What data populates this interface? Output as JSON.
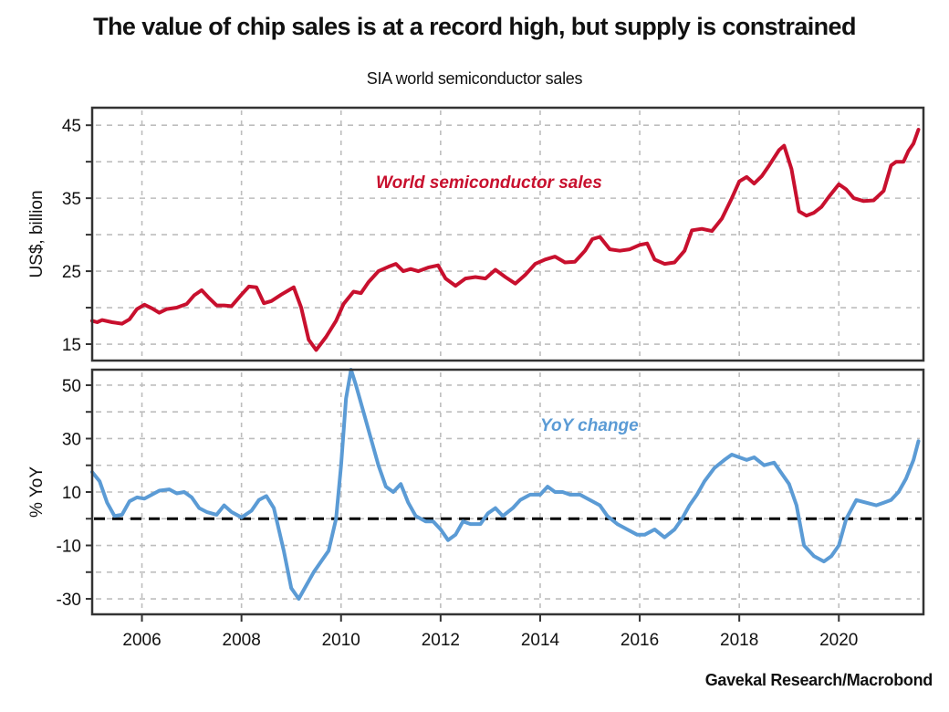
{
  "chart_data": [
    {
      "type": "line",
      "title": "The value of chip sales is at a record high, but supply is constrained",
      "subtitle": "SIA world semiconductor sales",
      "xlabel": "",
      "ylabel": "US$, billion",
      "xlim": [
        2005.0,
        2021.7
      ],
      "ylim": [
        12.75,
        47.4
      ],
      "yticks": [
        15,
        25,
        35,
        45
      ],
      "yminor": [
        20,
        30,
        40
      ],
      "xticks": [
        2006,
        2008,
        2010,
        2012,
        2014,
        2016,
        2018,
        2020
      ],
      "grid": true,
      "color": "#c8102e",
      "series": [
        {
          "name": "World semiconductor sales",
          "x": [
            2005.0,
            2005.1,
            2005.2,
            2005.4,
            2005.6,
            2005.75,
            2005.9,
            2006.05,
            2006.2,
            2006.35,
            2006.5,
            2006.7,
            2006.9,
            2007.05,
            2007.2,
            2007.35,
            2007.5,
            2007.65,
            2007.8,
            2008.0,
            2008.15,
            2008.3,
            2008.45,
            2008.6,
            2008.8,
            2008.95,
            2009.05,
            2009.2,
            2009.35,
            2009.5,
            2009.7,
            2009.9,
            2010.05,
            2010.25,
            2010.4,
            2010.55,
            2010.75,
            2010.95,
            2011.1,
            2011.25,
            2011.4,
            2011.55,
            2011.75,
            2011.95,
            2012.1,
            2012.3,
            2012.5,
            2012.7,
            2012.9,
            2013.1,
            2013.3,
            2013.5,
            2013.7,
            2013.9,
            2014.1,
            2014.3,
            2014.5,
            2014.7,
            2014.9,
            2015.05,
            2015.2,
            2015.4,
            2015.6,
            2015.8,
            2016.0,
            2016.15,
            2016.3,
            2016.5,
            2016.7,
            2016.9,
            2017.05,
            2017.25,
            2017.45,
            2017.65,
            2017.85,
            2018.0,
            2018.15,
            2018.3,
            2018.45,
            2018.6,
            2018.8,
            2018.9,
            2019.05,
            2019.2,
            2019.35,
            2019.5,
            2019.65,
            2019.8,
            2020.0,
            2020.15,
            2020.3,
            2020.5,
            2020.7,
            2020.9,
            2021.05,
            2021.15,
            2021.3,
            2021.4,
            2021.5,
            2021.6
          ],
          "values": [
            18.2,
            18.0,
            18.3,
            18.0,
            17.8,
            18.4,
            19.8,
            20.4,
            19.9,
            19.3,
            19.8,
            20.0,
            20.5,
            21.7,
            22.4,
            21.3,
            20.3,
            20.3,
            20.2,
            21.8,
            22.9,
            22.8,
            20.6,
            20.9,
            21.8,
            22.4,
            22.8,
            20.0,
            15.6,
            14.2,
            16.0,
            18.2,
            20.5,
            22.2,
            22.0,
            23.5,
            25.0,
            25.6,
            26.0,
            25.0,
            25.3,
            25.0,
            25.5,
            25.8,
            24.0,
            23.0,
            24.0,
            24.2,
            24.0,
            25.2,
            24.2,
            23.3,
            24.5,
            26.0,
            26.6,
            27.0,
            26.2,
            26.3,
            27.8,
            29.4,
            29.7,
            28.0,
            27.8,
            28.0,
            28.6,
            28.8,
            26.6,
            26.0,
            26.2,
            27.8,
            30.6,
            30.8,
            30.5,
            32.2,
            35.0,
            37.3,
            37.9,
            37.0,
            38.0,
            39.5,
            41.6,
            42.2,
            39.0,
            33.2,
            32.6,
            33.0,
            33.8,
            35.2,
            36.9,
            36.2,
            35.0,
            34.6,
            34.7,
            36.0,
            39.5,
            40.0,
            40.0,
            41.5,
            42.5,
            44.4
          ]
        }
      ],
      "annotations": [
        "World semiconductor sales"
      ]
    },
    {
      "type": "line",
      "xlabel": "",
      "ylabel": "% YoY",
      "xlim": [
        2005.0,
        2021.7
      ],
      "ylim": [
        -35.8,
        55.8
      ],
      "yticks": [
        50,
        30,
        10,
        -10,
        -30
      ],
      "yminor": [
        40,
        20,
        0,
        -20
      ],
      "xticks": [
        2006,
        2008,
        2010,
        2012,
        2014,
        2016,
        2018,
        2020
      ],
      "reference_line": 0,
      "grid": true,
      "color": "#5b9bd5",
      "series": [
        {
          "name": "YoY change",
          "x": [
            2005.0,
            2005.15,
            2005.3,
            2005.45,
            2005.6,
            2005.75,
            2005.9,
            2006.05,
            2006.2,
            2006.35,
            2006.55,
            2006.7,
            2006.85,
            2007.0,
            2007.15,
            2007.3,
            2007.5,
            2007.65,
            2007.8,
            2008.0,
            2008.2,
            2008.35,
            2008.5,
            2008.65,
            2008.85,
            2009.0,
            2009.15,
            2009.3,
            2009.45,
            2009.6,
            2009.75,
            2009.9,
            2010.0,
            2010.1,
            2010.2,
            2010.3,
            2010.45,
            2010.6,
            2010.75,
            2010.9,
            2011.05,
            2011.2,
            2011.35,
            2011.5,
            2011.7,
            2011.85,
            2012.0,
            2012.15,
            2012.3,
            2012.45,
            2012.6,
            2012.8,
            2012.95,
            2013.1,
            2013.25,
            2013.45,
            2013.6,
            2013.8,
            2014.0,
            2014.15,
            2014.3,
            2014.45,
            2014.6,
            2014.8,
            2015.0,
            2015.2,
            2015.35,
            2015.55,
            2015.75,
            2015.95,
            2016.1,
            2016.3,
            2016.5,
            2016.7,
            2016.85,
            2017.0,
            2017.15,
            2017.3,
            2017.5,
            2017.7,
            2017.85,
            2018.0,
            2018.15,
            2018.3,
            2018.5,
            2018.7,
            2018.85,
            2019.0,
            2019.15,
            2019.3,
            2019.5,
            2019.7,
            2019.85,
            2020.0,
            2020.15,
            2020.35,
            2020.55,
            2020.75,
            2020.9,
            2021.05,
            2021.2,
            2021.35,
            2021.5,
            2021.6
          ],
          "values": [
            17.5,
            14,
            6,
            1,
            1.5,
            6.5,
            8,
            7.5,
            9,
            10.5,
            11,
            9.5,
            10,
            8,
            4,
            2.5,
            1.5,
            5,
            2.5,
            0.5,
            3,
            7,
            8.5,
            4,
            -12,
            -26,
            -30,
            -25,
            -20,
            -16,
            -12,
            0,
            20,
            45,
            56,
            50,
            40,
            30,
            20,
            12,
            10,
            13,
            6,
            1,
            -1,
            -1,
            -4,
            -8,
            -6,
            -1,
            -2,
            -2,
            2,
            4,
            1,
            4,
            7,
            9,
            9,
            12,
            10,
            10,
            9,
            9,
            7,
            5,
            1,
            -2,
            -4,
            -6,
            -6,
            -4,
            -7,
            -4,
            0,
            5,
            9,
            14,
            19,
            22,
            24,
            23,
            22,
            23,
            20,
            21,
            17,
            13,
            5,
            -10,
            -14,
            -16,
            -14,
            -10,
            0,
            7,
            6,
            5,
            6,
            7,
            10,
            15,
            22,
            29
          ]
        }
      ],
      "annotations": [
        "YoY change"
      ]
    }
  ],
  "source": "Gavekal Research/Macrobond"
}
